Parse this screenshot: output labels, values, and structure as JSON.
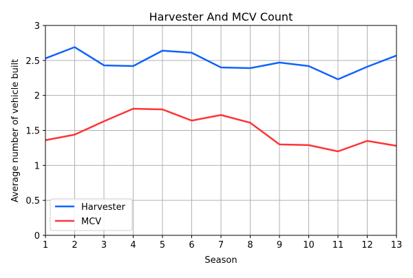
{
  "chart_data": {
    "type": "line",
    "title": "Harvester And MCV Count",
    "xlabel": "Season",
    "ylabel": "Average number of vehicle built",
    "x": [
      1,
      2,
      3,
      4,
      5,
      6,
      7,
      8,
      9,
      10,
      11,
      12,
      13
    ],
    "xlim": [
      1,
      13
    ],
    "ylim": [
      0,
      3
    ],
    "xticks": [
      "1",
      "2",
      "3",
      "4",
      "5",
      "6",
      "7",
      "8",
      "9",
      "10",
      "11",
      "12",
      "13"
    ],
    "yticks": [
      "0",
      "0.5",
      "1",
      "1.5",
      "2",
      "2.5",
      "3"
    ],
    "grid": true,
    "legend_position": "lower-left",
    "series": [
      {
        "name": "Harvester",
        "color": "#0f62fe",
        "values": [
          2.53,
          2.69,
          2.43,
          2.42,
          2.64,
          2.61,
          2.4,
          2.39,
          2.47,
          2.42,
          2.23,
          2.41,
          2.57
        ]
      },
      {
        "name": "MCV",
        "color": "#ff3333",
        "values": [
          1.36,
          1.44,
          1.63,
          1.81,
          1.8,
          1.64,
          1.72,
          1.61,
          1.3,
          1.29,
          1.2,
          1.35,
          1.28
        ]
      }
    ]
  }
}
